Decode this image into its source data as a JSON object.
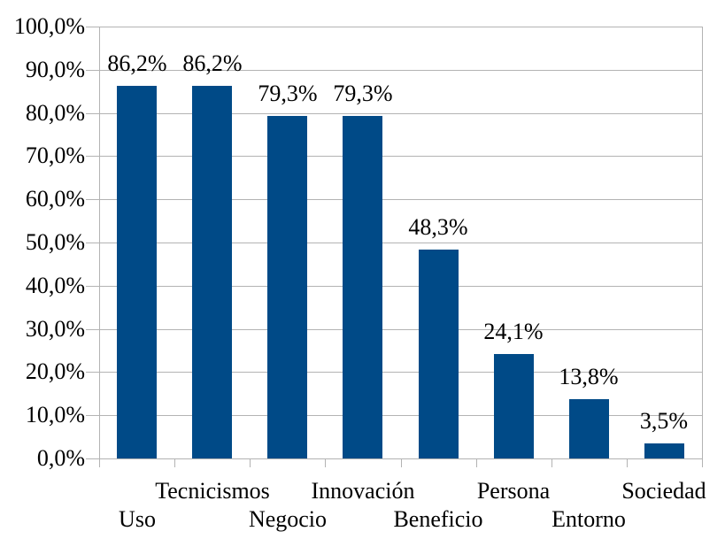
{
  "chart_data": {
    "type": "bar",
    "title": "",
    "xlabel": "",
    "ylabel": "",
    "categories": [
      "Uso",
      "Tecnicismos",
      "Negocio",
      "Innovación",
      "Beneficio",
      "Persona",
      "Entorno",
      "Sociedad"
    ],
    "values": [
      86.2,
      86.2,
      79.3,
      79.3,
      48.3,
      24.1,
      13.8,
      3.5
    ],
    "value_labels": [
      "86,2%",
      "86,2%",
      "79,3%",
      "79,3%",
      "48,3%",
      "24,1%",
      "13,8%",
      "3,5%"
    ],
    "ylim": [
      0,
      100
    ],
    "y_tick_step": 10,
    "y_tick_labels": [
      "100,0%",
      "90,0%",
      "80,0%",
      "70,0%",
      "60,0%",
      "50,0%",
      "40,0%",
      "30,0%",
      "20,0%",
      "10,0%",
      "0,0%"
    ],
    "grid": "horizontal",
    "legend": "none",
    "x_label_layout": "staggered-two-rows",
    "colors": {
      "bar": "#004a87",
      "grid": "#b3b3b3",
      "axis": "#b3b3b3",
      "text": "#000000",
      "background": "#ffffff"
    }
  }
}
